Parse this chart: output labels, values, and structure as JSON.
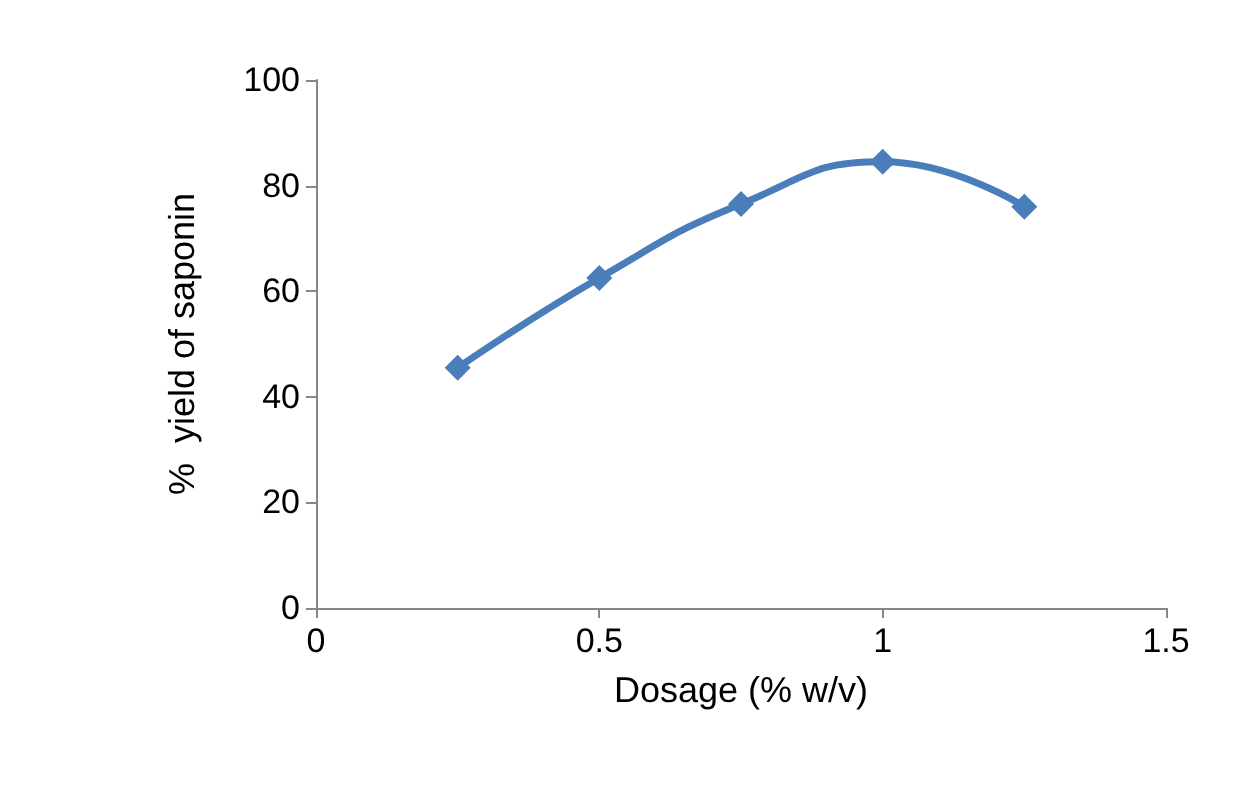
{
  "chart_data": {
    "type": "line",
    "xlabel": "Dosage (% w/v)",
    "ylabel": "%  yield of saponin",
    "x": [
      0.25,
      0.5,
      0.75,
      1,
      1.25
    ],
    "series": [
      {
        "color": "#4a7ebb",
        "values": [
          45.5,
          62.5,
          76.5,
          84.5,
          76
        ]
      }
    ],
    "xlim": [
      0,
      1.5
    ],
    "xticks": [
      0,
      0.5,
      1,
      1.5
    ],
    "ylim": [
      0,
      100
    ],
    "yticks": [
      0,
      20,
      40,
      60,
      80,
      100
    ],
    "grid": false,
    "marker": "diamond",
    "line_style": "solid"
  }
}
